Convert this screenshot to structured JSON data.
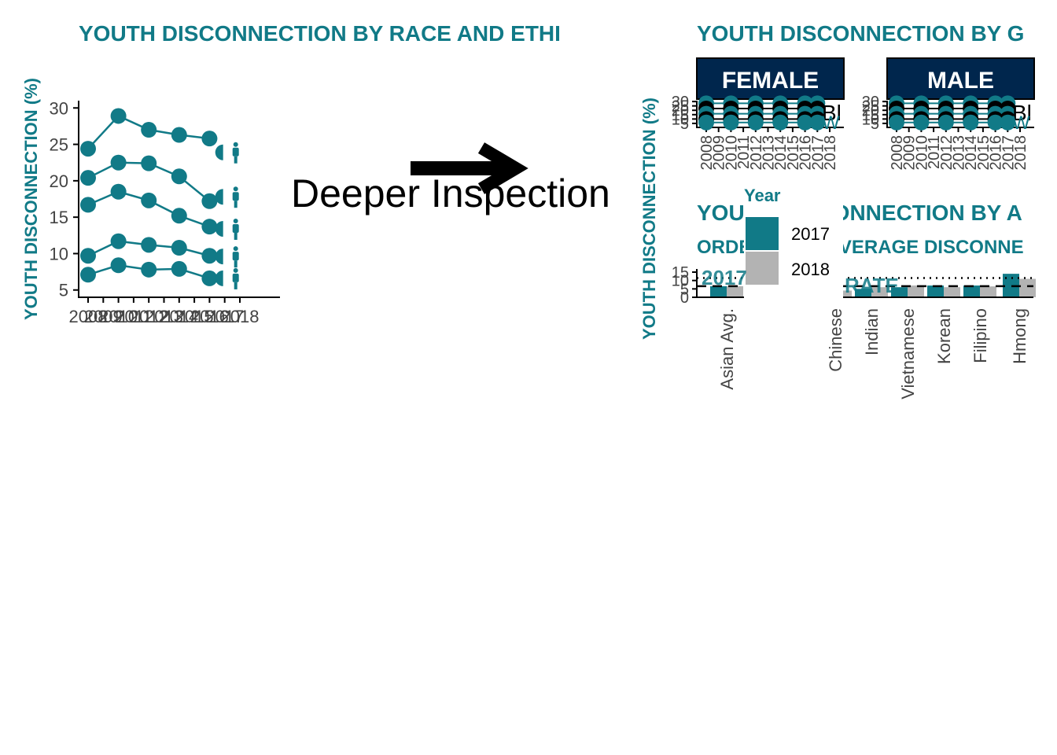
{
  "colors": {
    "teal": "#117a87",
    "navy": "#00264d",
    "grey": "#b3b3b3",
    "black": "#000000"
  },
  "annotation": "Deeper Inspection",
  "chart_data": [
    {
      "type": "line",
      "title": "YOUTH DISCONNECTION BY RACE AND ETHI",
      "ylabel": "YOUTH DISCONNECTION (%)",
      "xlabel": "",
      "x": [
        2008,
        2010,
        2012,
        2014,
        2016,
        2017
      ],
      "xticks": [
        "2008",
        "2009",
        "2010",
        "2011",
        "2012",
        "2013",
        "2014",
        "2015",
        "2016",
        "2017",
        "2018"
      ],
      "yticks": [
        5,
        10,
        15,
        20,
        25,
        30
      ],
      "ylim": [
        4,
        31
      ],
      "xlim": [
        2007.6,
        2018.7
      ],
      "grid": false,
      "series": [
        {
          "values": [
            24.4,
            28.9,
            27.0,
            26.3,
            25.8,
            23.9
          ]
        },
        {
          "values": [
            20.4,
            22.5,
            22.4,
            20.6,
            17.2,
            17.8
          ]
        },
        {
          "values": [
            16.7,
            18.5,
            17.3,
            15.2,
            13.7,
            13.4
          ]
        },
        {
          "values": [
            9.7,
            11.7,
            11.2,
            10.8,
            9.7,
            9.6
          ]
        },
        {
          "values": [
            7.1,
            8.4,
            7.8,
            7.9,
            6.6,
            6.6
          ]
        }
      ]
    },
    {
      "type": "line",
      "title": "YOUTH DISCONNECTION BY G",
      "ylabel": "YOUTH DISCONNECTION (%)",
      "facets": [
        "FEMALE",
        "MALE"
      ],
      "yticks": [
        5,
        10,
        15,
        20,
        25,
        30
      ],
      "ylim": [
        4,
        31
      ],
      "xticks": [
        "2008",
        "2009",
        "2010",
        "2011",
        "2012",
        "2013",
        "2014",
        "2015",
        "2016",
        "2017",
        "2018"
      ],
      "line_labels": [
        "Bl",
        "W"
      ],
      "grid": false
    },
    {
      "type": "bar",
      "title": "YOUTH DISCONNECTION BY A",
      "subtitle": "ORDERED BY AVERAGE DISCONNE",
      "categories": [
        "Asian Avg.",
        "Chinese",
        "Indian",
        "Vietnamese",
        "Korean",
        "Filipino",
        "Hmong"
      ],
      "series": [
        {
          "name": "2017",
          "values": [
            6.6,
            5.0,
            5.0,
            6.0,
            7.0,
            7.0,
            14.0
          ]
        },
        {
          "name": "2018",
          "values": [
            6.6,
            4.0,
            6.0,
            7.0,
            6.0,
            6.5,
            11.0
          ]
        }
      ],
      "yticks": [
        0,
        5,
        10,
        15
      ],
      "ylim": [
        0,
        15
      ],
      "legend": {
        "title": "Year",
        "entries": [
          "2017",
          "2018"
        ],
        "placement": "top-left overlay"
      },
      "annotations": [
        "2017",
        "RATE"
      ],
      "grid": false
    }
  ]
}
